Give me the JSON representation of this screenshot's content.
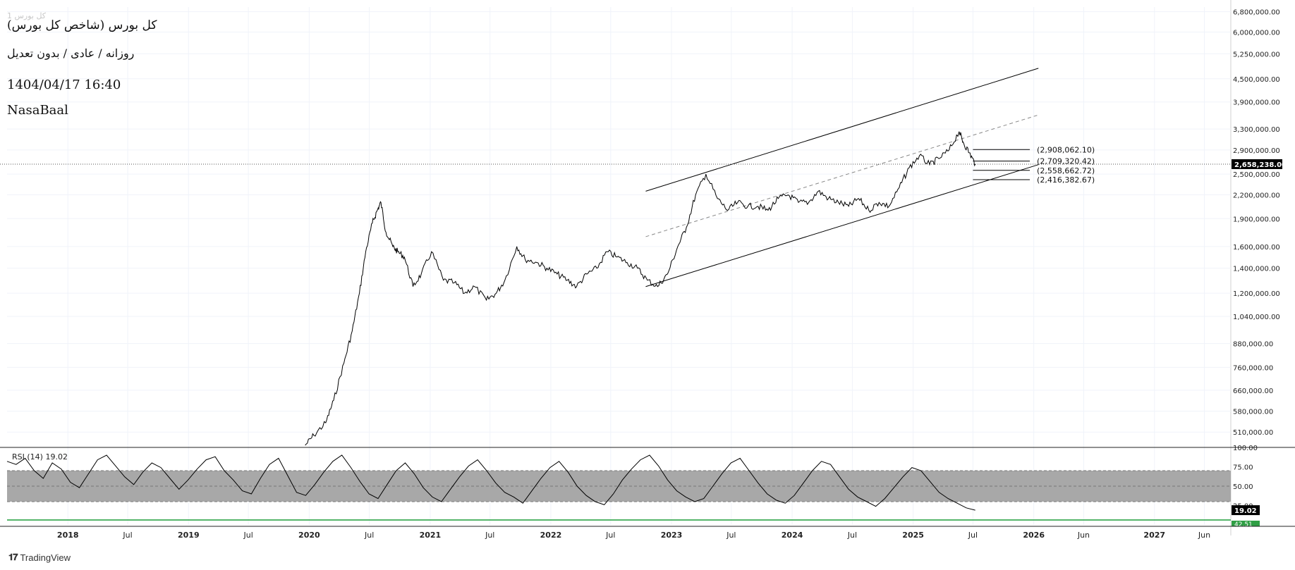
{
  "header": {
    "faint_label": "1 کل بورس",
    "title": "کل بورس (شاخص کل بورس)",
    "interval": "روزانه / عادی / بدون تعدیل",
    "datetime": "1404/04/17 16:40",
    "author": "NasaBaal"
  },
  "branding": {
    "name": "TradingView",
    "logo_icon": "tradingview-logo-icon"
  },
  "rsi": {
    "label": "RSI (14)",
    "value_label": "19.02"
  },
  "colors": {
    "price_line": "#000000",
    "rsi_band": "#a8a8a8",
    "ma_line": "#1e9e3a",
    "price_tag": "#000000",
    "green_tag": "#2f9e44"
  },
  "chart_data": {
    "type": "line",
    "scale": "log",
    "grid": true,
    "y_ticks": [
      "6,800,000.00",
      "6,000,000.00",
      "5,250,000.00",
      "4,500,000.00",
      "3,900,000.00",
      "3,300,000.00",
      "2,900,000.00",
      "2,500,000.00",
      "2,200,000.00",
      "1,900,000.00",
      "1,600,000.00",
      "1,400,000.00",
      "1,200,000.00",
      "1,040,000.00",
      "880,000.00",
      "760,000.00",
      "660,000.00",
      "580,000.00",
      "510,000.00"
    ],
    "x_ticks": [
      "2018",
      "Jul",
      "2019",
      "Jul",
      "2020",
      "Jul",
      "2021",
      "Jul",
      "2022",
      "Jul",
      "2023",
      "Jul",
      "2024",
      "Jul",
      "2025",
      "Jul",
      "2026",
      "Jun",
      "2027",
      "Jun"
    ],
    "last_price": "2,658,238.00",
    "last_value": 2658238,
    "levels": [
      {
        "label": "(2,908,062.10)",
        "value": 2908062.1
      },
      {
        "label": "(2,709,320.42)",
        "value": 2709320.42
      },
      {
        "label": "(2,558,662.72)",
        "value": 2558662.72
      },
      {
        "label": "(2,416,382.67)",
        "value": 2416382.67
      }
    ],
    "series": [
      {
        "x": [
          "2019-12-20",
          "2020-01-15",
          "2020-02-20",
          "2020-03-15",
          "2020-04-15",
          "2020-05-10",
          "2020-06-01",
          "2020-06-20",
          "2020-07-10",
          "2020-07-25",
          "2020-08-05",
          "2020-08-20",
          "2020-09-10",
          "2020-09-25",
          "2020-10-15",
          "2020-11-10",
          "2020-12-05",
          "2021-01-05",
          "2021-02-10",
          "2021-03-15",
          "2021-04-15",
          "2021-05-15",
          "2021-06-20",
          "2021-07-20",
          "2021-08-15",
          "2021-09-20",
          "2021-10-15",
          "2021-11-20",
          "2021-12-20",
          "2022-01-20",
          "2022-02-20",
          "2022-03-20",
          "2022-04-20",
          "2022-05-20",
          "2022-06-20",
          "2022-07-20",
          "2022-08-20",
          "2022-09-20",
          "2022-10-20",
          "2022-11-20",
          "2022-12-20",
          "2023-01-20",
          "2023-02-15",
          "2023-03-15",
          "2023-04-15",
          "2023-05-20",
          "2023-06-20",
          "2023-07-20",
          "2023-08-20",
          "2023-09-20",
          "2023-10-20",
          "2023-11-20",
          "2023-12-20",
          "2024-01-20",
          "2024-02-20",
          "2024-03-20",
          "2024-04-20",
          "2024-05-20",
          "2024-06-20",
          "2024-07-20",
          "2024-08-20",
          "2024-09-20",
          "2024-10-20",
          "2024-11-20",
          "2024-12-20",
          "2025-01-20",
          "2025-02-20",
          "2025-03-20",
          "2025-04-20",
          "2025-05-20",
          "2025-06-01",
          "2025-06-20",
          "2025-07-08"
        ],
        "y": [
          470000,
          500000,
          540000,
          620000,
          780000,
          950000,
          1200000,
          1550000,
          1850000,
          2000000,
          2100000,
          1750000,
          1600000,
          1550000,
          1500000,
          1250000,
          1350000,
          1550000,
          1300000,
          1280000,
          1200000,
          1250000,
          1150000,
          1200000,
          1300000,
          1600000,
          1480000,
          1450000,
          1400000,
          1350000,
          1300000,
          1250000,
          1350000,
          1400000,
          1550000,
          1500000,
          1450000,
          1400000,
          1300000,
          1250000,
          1350000,
          1600000,
          1800000,
          2200000,
          2500000,
          2150000,
          2000000,
          2100000,
          2050000,
          2050000,
          2000000,
          2150000,
          2200000,
          2100000,
          2100000,
          2250000,
          2150000,
          2100000,
          2050000,
          2150000,
          2000000,
          2100000,
          2050000,
          2300000,
          2600000,
          2800000,
          2650000,
          2750000,
          2900000,
          3250000,
          3050000,
          2850000,
          2658238
        ]
      }
    ],
    "rsi_series": {
      "y_ticks": [
        "100.00",
        "75.00",
        "50.00",
        "25.00"
      ],
      "band": [
        30,
        70
      ],
      "values": [
        82,
        78,
        86,
        70,
        60,
        80,
        72,
        55,
        48,
        66,
        84,
        90,
        76,
        62,
        52,
        68,
        80,
        74,
        60,
        46,
        58,
        72,
        84,
        88,
        70,
        58,
        44,
        40,
        60,
        78,
        86,
        64,
        42,
        38,
        52,
        68,
        82,
        90,
        74,
        56,
        40,
        34,
        52,
        70,
        80,
        66,
        48,
        36,
        30,
        46,
        62,
        76,
        84,
        70,
        54,
        42,
        36,
        28,
        44,
        60,
        74,
        82,
        68,
        50,
        38,
        30,
        26,
        40,
        58,
        72,
        84,
        90,
        76,
        58,
        44,
        36,
        30,
        34,
        50,
        66,
        80,
        86,
        70,
        54,
        40,
        32,
        28,
        38,
        54,
        70,
        82,
        78,
        62,
        46,
        36,
        30,
        24,
        34,
        48,
        62,
        74,
        70,
        56,
        42,
        34,
        28,
        22,
        19
      ]
    },
    "green_tag_label": "42.51"
  }
}
